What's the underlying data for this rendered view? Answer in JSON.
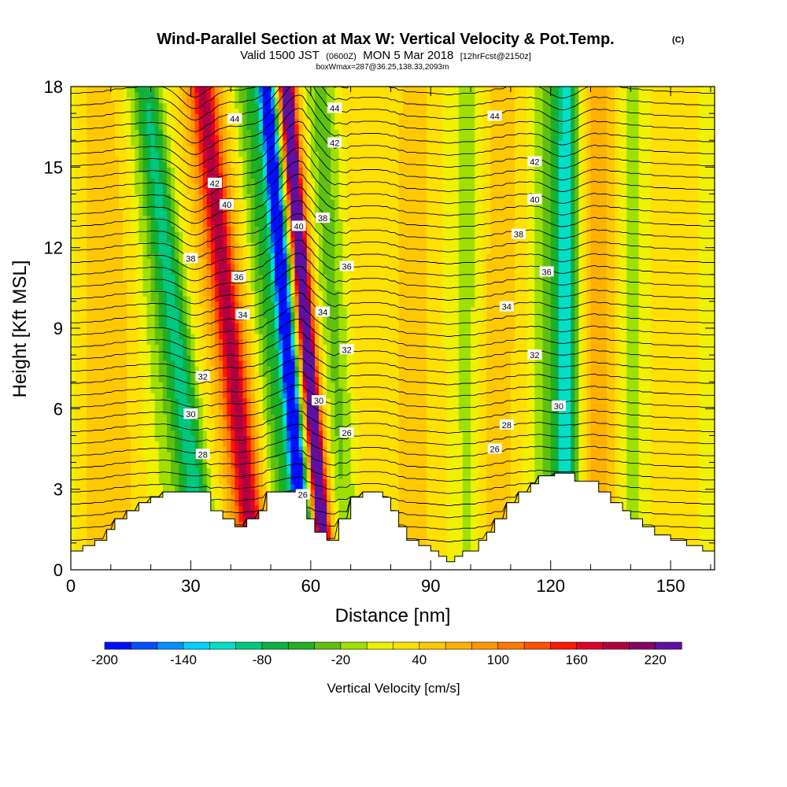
{
  "title": {
    "main": "Wind-Parallel Section at Max W: Vertical Velocity & Pot.Temp.",
    "main_suffix": "(C)",
    "valid_prefix": "Valid 1500 JST",
    "valid_zulu": "(0600Z)",
    "valid_date": "MON 5 Mar 2018",
    "valid_fcst": "[12hrFcst@2150z]",
    "box": "boxWmax=287@36.25,138.33,2093m"
  },
  "colors": {
    "contour_line": "#000000",
    "terrain": "#ffffff",
    "frame": "#000000"
  },
  "chart_data": {
    "type": "heatmap",
    "xlabel": "Distance [nm]",
    "ylabel": "Height [Kft MSL]",
    "xlim": [
      0,
      161
    ],
    "ylim": [
      0,
      18
    ],
    "x_ticks": [
      0,
      30,
      60,
      90,
      120,
      150
    ],
    "y_ticks": [
      0,
      3,
      6,
      9,
      12,
      15,
      18
    ],
    "colorbar": {
      "label": "Vertical Velocity [cm/s]",
      "levels": [
        -200,
        -180,
        -160,
        -140,
        -120,
        -100,
        -80,
        -60,
        -40,
        -20,
        0,
        20,
        40,
        60,
        80,
        100,
        120,
        140,
        160,
        180,
        200,
        220
      ],
      "tick_labels": [
        "-200",
        "-140",
        "-80",
        "-20",
        "40",
        "100",
        "160",
        "220"
      ],
      "colors": [
        "#0010ff",
        "#0050ff",
        "#0090ff",
        "#00d0ff",
        "#00e0c8",
        "#00c880",
        "#10b040",
        "#20b020",
        "#60c010",
        "#a0e000",
        "#f0f000",
        "#ffe000",
        "#ffc800",
        "#ffb000",
        "#ff9600",
        "#ff7800",
        "#ff5000",
        "#ff1800",
        "#e0002a",
        "#b00040",
        "#880068",
        "#6010a0"
      ]
    },
    "terrain_kft": [
      [
        0,
        0.7
      ],
      [
        3,
        0.7
      ],
      [
        3,
        0.9
      ],
      [
        6,
        0.9
      ],
      [
        6,
        1.1
      ],
      [
        9,
        1.1
      ],
      [
        9,
        1.5
      ],
      [
        11,
        1.5
      ],
      [
        11,
        1.9
      ],
      [
        14,
        1.9
      ],
      [
        14,
        2.2
      ],
      [
        17,
        2.2
      ],
      [
        17,
        2.5
      ],
      [
        20,
        2.5
      ],
      [
        20,
        2.7
      ],
      [
        23,
        2.7
      ],
      [
        23,
        2.9
      ],
      [
        35,
        2.9
      ],
      [
        35,
        2.2
      ],
      [
        38,
        2.2
      ],
      [
        38,
        1.9
      ],
      [
        41,
        1.9
      ],
      [
        41,
        1.6
      ],
      [
        44,
        1.6
      ],
      [
        44,
        1.9
      ],
      [
        47,
        1.9
      ],
      [
        47,
        2.2
      ],
      [
        49,
        2.2
      ],
      [
        49,
        2.9
      ],
      [
        59,
        2.9
      ],
      [
        59,
        1.9
      ],
      [
        61,
        1.9
      ],
      [
        61,
        1.4
      ],
      [
        64,
        1.4
      ],
      [
        64,
        1.1
      ],
      [
        67,
        1.1
      ],
      [
        67,
        1.9
      ],
      [
        70,
        1.9
      ],
      [
        70,
        2.7
      ],
      [
        73,
        2.7
      ],
      [
        73,
        2.9
      ],
      [
        78,
        2.9
      ],
      [
        78,
        2.7
      ],
      [
        80,
        2.7
      ],
      [
        80,
        2.2
      ],
      [
        82,
        2.2
      ],
      [
        82,
        1.6
      ],
      [
        84,
        1.6
      ],
      [
        84,
        1.1
      ],
      [
        87,
        1.1
      ],
      [
        87,
        0.9
      ],
      [
        90,
        0.9
      ],
      [
        90,
        0.7
      ],
      [
        92,
        0.7
      ],
      [
        92,
        0.5
      ],
      [
        94,
        0.5
      ],
      [
        94,
        0.3
      ],
      [
        96,
        0.3
      ],
      [
        96,
        0.5
      ],
      [
        98,
        0.5
      ],
      [
        98,
        0.7
      ],
      [
        102,
        0.7
      ],
      [
        102,
        1.1
      ],
      [
        104,
        1.1
      ],
      [
        104,
        1.4
      ],
      [
        106,
        1.4
      ],
      [
        106,
        1.9
      ],
      [
        109,
        1.9
      ],
      [
        109,
        2.5
      ],
      [
        112,
        2.5
      ],
      [
        112,
        2.9
      ],
      [
        115,
        2.9
      ],
      [
        115,
        3.2
      ],
      [
        117,
        3.2
      ],
      [
        117,
        3.5
      ],
      [
        121,
        3.5
      ],
      [
        121,
        3.6
      ],
      [
        126,
        3.6
      ],
      [
        126,
        3.3
      ],
      [
        132,
        3.3
      ],
      [
        132,
        2.9
      ],
      [
        135,
        2.9
      ],
      [
        135,
        2.5
      ],
      [
        138,
        2.5
      ],
      [
        138,
        2.2
      ],
      [
        140,
        2.2
      ],
      [
        140,
        1.9
      ],
      [
        143,
        1.9
      ],
      [
        143,
        1.6
      ],
      [
        146,
        1.6
      ],
      [
        146,
        1.3
      ],
      [
        150,
        1.3
      ],
      [
        150,
        1.1
      ],
      [
        154,
        1.1
      ],
      [
        154,
        0.9
      ],
      [
        158,
        0.9
      ],
      [
        158,
        0.7
      ],
      [
        161,
        0.7
      ]
    ],
    "w_bands": [
      {
        "x": 6,
        "width": 5,
        "w": 30,
        "slope": 0.0
      },
      {
        "x": 12,
        "width": 7,
        "w": 35,
        "slope": 0.0
      },
      {
        "x": 29,
        "width": 6,
        "w": -35,
        "slope": -1.0
      },
      {
        "x": 31,
        "width": 3,
        "w": -75,
        "slope": -0.9
      },
      {
        "x": 43,
        "width": 6,
        "w": 80,
        "slope": -0.8
      },
      {
        "x": 44,
        "width": 3,
        "w": 110,
        "slope": -0.8
      },
      {
        "x": 52,
        "width": 3,
        "w": -45,
        "slope": -0.6
      },
      {
        "x": 57,
        "width": 3,
        "w": -140,
        "slope": -0.6
      },
      {
        "x": 57,
        "width": 1.3,
        "w": -190,
        "slope": -0.6
      },
      {
        "x": 62,
        "width": 3,
        "w": 150,
        "slope": -0.6
      },
      {
        "x": 62,
        "width": 1.3,
        "w": 210,
        "slope": -0.6
      },
      {
        "x": 68,
        "width": 4,
        "w": -40,
        "slope": -0.4
      },
      {
        "x": 74,
        "width": 6,
        "w": 25,
        "slope": -0.2
      },
      {
        "x": 86,
        "width": 7,
        "w": 40,
        "slope": 0.0
      },
      {
        "x": 100,
        "width": 4,
        "w": -30,
        "slope": 0.0
      },
      {
        "x": 106,
        "width": 7,
        "w": 45,
        "slope": 0.1
      },
      {
        "x": 122,
        "width": 5,
        "w": -55,
        "slope": 0.0
      },
      {
        "x": 124,
        "width": 2.5,
        "w": -80,
        "slope": 0.0
      },
      {
        "x": 132,
        "width": 5,
        "w": 70,
        "slope": 0.0
      },
      {
        "x": 140,
        "width": 4,
        "w": -20,
        "slope": 0.0
      },
      {
        "x": 150,
        "width": 7,
        "w": 30,
        "slope": 0.0
      }
    ],
    "contour_levels": [
      {
        "theta": 26,
        "ref_height_kft": 4.2
      },
      {
        "theta": 28,
        "ref_height_kft": 5.2
      },
      {
        "theta": 30,
        "ref_height_kft": 6.1
      },
      {
        "theta": 32,
        "ref_height_kft": 8.0
      },
      {
        "theta": 34,
        "ref_height_kft": 9.8
      },
      {
        "theta": 36,
        "ref_height_kft": 11.1
      },
      {
        "theta": 38,
        "ref_height_kft": 12.5
      },
      {
        "theta": 40,
        "ref_height_kft": 13.8
      },
      {
        "theta": 42,
        "ref_height_kft": 15.2
      },
      {
        "theta": 44,
        "ref_height_kft": 16.9
      }
    ],
    "contour_labels": [
      {
        "text": "44",
        "x": 41,
        "y": 16.8
      },
      {
        "text": "44",
        "x": 66,
        "y": 17.2
      },
      {
        "text": "44",
        "x": 106,
        "y": 16.9
      },
      {
        "text": "42",
        "x": 36,
        "y": 14.4
      },
      {
        "text": "42",
        "x": 66,
        "y": 15.9
      },
      {
        "text": "42",
        "x": 116,
        "y": 15.2
      },
      {
        "text": "40",
        "x": 39,
        "y": 13.6
      },
      {
        "text": "40",
        "x": 57,
        "y": 12.8
      },
      {
        "text": "40",
        "x": 116,
        "y": 13.8
      },
      {
        "text": "38",
        "x": 30,
        "y": 11.6
      },
      {
        "text": "38",
        "x": 63,
        "y": 13.1
      },
      {
        "text": "38",
        "x": 112,
        "y": 12.5
      },
      {
        "text": "36",
        "x": 42,
        "y": 10.9
      },
      {
        "text": "36",
        "x": 69,
        "y": 11.3
      },
      {
        "text": "36",
        "x": 119,
        "y": 11.1
      },
      {
        "text": "34",
        "x": 43,
        "y": 9.5
      },
      {
        "text": "34",
        "x": 63,
        "y": 9.6
      },
      {
        "text": "34",
        "x": 109,
        "y": 9.8
      },
      {
        "text": "32",
        "x": 33,
        "y": 7.2
      },
      {
        "text": "32",
        "x": 69,
        "y": 8.2
      },
      {
        "text": "32",
        "x": 116,
        "y": 8.0
      },
      {
        "text": "30",
        "x": 30,
        "y": 5.8
      },
      {
        "text": "30",
        "x": 62,
        "y": 6.3
      },
      {
        "text": "30",
        "x": 122,
        "y": 6.1
      },
      {
        "text": "28",
        "x": 33,
        "y": 4.3
      },
      {
        "text": "28",
        "x": 109,
        "y": 5.4
      },
      {
        "text": "26",
        "x": 69,
        "y": 5.1
      },
      {
        "text": "26",
        "x": 106,
        "y": 4.5
      },
      {
        "text": "26",
        "x": 58,
        "y": 2.8
      }
    ]
  }
}
